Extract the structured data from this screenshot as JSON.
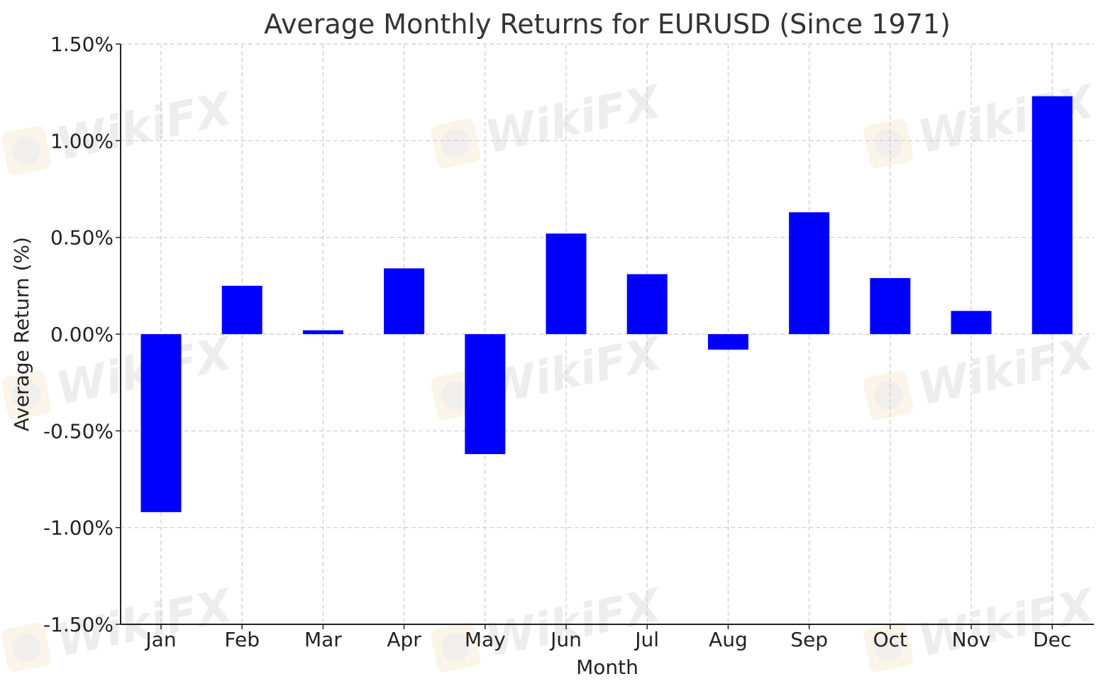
{
  "watermark": {
    "text": "WikiFX"
  },
  "chart_data": {
    "type": "bar",
    "title": "Average Monthly Returns for EURUSD (Since 1971)",
    "xlabel": "Month",
    "ylabel": "Average Return (%)",
    "categories": [
      "Jan",
      "Feb",
      "Mar",
      "Apr",
      "May",
      "Jun",
      "Jul",
      "Aug",
      "Sep",
      "Oct",
      "Nov",
      "Dec"
    ],
    "values": [
      -0.92,
      0.25,
      0.02,
      0.34,
      -0.62,
      0.52,
      0.31,
      -0.08,
      0.63,
      0.29,
      0.12,
      1.23
    ],
    "ylim": [
      -1.5,
      1.5
    ],
    "yticks": [
      -1.5,
      -1.0,
      -0.5,
      0.0,
      0.5,
      1.0,
      1.5
    ],
    "ytick_labels": [
      "-1.50%",
      "-1.00%",
      "-0.50%",
      "0.00%",
      "0.50%",
      "1.00%",
      "1.50%"
    ],
    "grid": true,
    "bar_color": "#0000ff",
    "grid_color": "#cccccc"
  }
}
